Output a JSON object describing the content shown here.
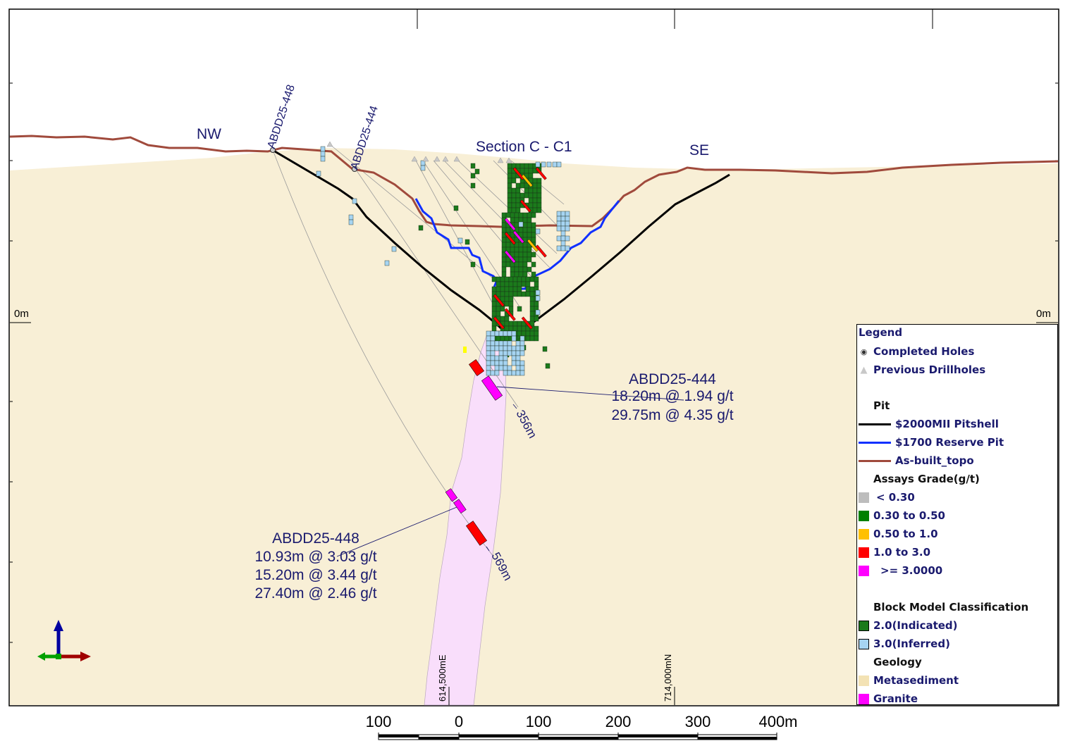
{
  "section": {
    "title": "Section C - C1",
    "left_direction": "NW",
    "right_direction": "SE",
    "elevation_label_left": "0m",
    "elevation_label_right": "0m",
    "easting_label": "614,500mE",
    "northing_label": "714,000mN"
  },
  "drillholes": [
    {
      "name": "ABDD25-448",
      "end_depth": "569m",
      "intercepts": [
        "10.93m @ 3.03 g/t",
        "15.20m @ 3.44 g/t",
        "27.40m @ 2.46 g/t"
      ]
    },
    {
      "name": "ABDD25-444",
      "end_depth": "356m",
      "intercepts": [
        "18.20m @ 1.94 g/t",
        "29.75m @ 4.35 g/t"
      ]
    }
  ],
  "colors": {
    "metasediment": "#f8efd6",
    "granite": "#f9defb",
    "pitshell": "#000000",
    "reserve_pit": "#1030ff",
    "topo": "#a04a3c",
    "indicated": "#1b7a1b",
    "inferred": "#a6d4f2",
    "grade_low": "#bdbdbd",
    "grade_030_050": "#008000",
    "grade_050_10": "#ffc000",
    "grade_10_30": "#ff0000",
    "grade_high": "#ff00ff",
    "label_text": "#1a1a6e"
  },
  "legend": {
    "title": "Legend",
    "completed_holes": "Completed Holes",
    "previous_drillholes": "Previous Drillholes",
    "pit_header": "Pit",
    "pitshell": "$2000MII Pitshell",
    "reserve_pit": "$1700 Reserve Pit",
    "topo": "As-built_topo",
    "assays_header": "Assays Grade(g/t)",
    "grades": [
      "< 0.30",
      "0.30 to 0.50",
      "0.50 to 1.0",
      "1.0 to 3.0",
      ">= 3.0000"
    ],
    "block_header": "Block Model Classification",
    "indicated": "2.0(Indicated)",
    "inferred": "3.0(Inferred)",
    "geology_header": "Geology",
    "metasediment": "Metasediment",
    "granite": "Granite"
  },
  "scale_bar": {
    "labels": [
      "100",
      "0",
      "100",
      "200",
      "300",
      "400m"
    ]
  }
}
